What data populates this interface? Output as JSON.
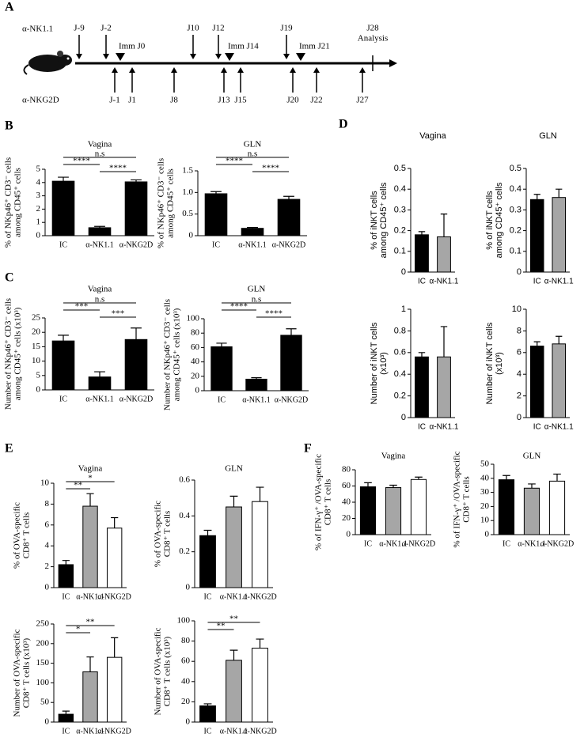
{
  "panel_labels": [
    "A",
    "B",
    "C",
    "D",
    "E",
    "F"
  ],
  "timeline": {
    "treatments": [
      "α-NK1.1",
      "α-NKG2D"
    ],
    "above": [
      "J-9",
      "J-2",
      "J10",
      "J12",
      "J19"
    ],
    "immunizations": [
      "Imm J0",
      "Imm J14",
      "Imm J21"
    ],
    "analysis": [
      "J28",
      "Analysis"
    ],
    "below": [
      "J-1",
      "J1",
      "J8",
      "J13",
      "J15",
      "J20",
      "J22",
      "J27"
    ]
  },
  "chart_data": [
    {
      "type": "bar",
      "title": "Vagina",
      "y_label": [
        "% of NKp46⁺ CD3⁻ cells",
        "among CD45⁺ cells"
      ],
      "categories": [
        "IC",
        "α-NK1.1",
        "α-NKG2D"
      ],
      "colors": [
        "#000000",
        "#000000",
        "#000000"
      ],
      "values": [
        4.1,
        0.6,
        4.05
      ],
      "errors": [
        0.3,
        0.1,
        0.15
      ],
      "ylim": [
        0,
        5
      ],
      "yticks": [
        0,
        1,
        2,
        3,
        4,
        5
      ],
      "significance": [
        {
          "label": "n.s",
          "between": [
            "IC",
            "α-NKG2D"
          ]
        },
        {
          "label": "****",
          "between": [
            "IC",
            "α-NK1.1"
          ]
        },
        {
          "label": "****",
          "between": [
            "α-NK1.1",
            "α-NKG2D"
          ]
        }
      ]
    },
    {
      "type": "bar",
      "title": "GLN",
      "y_label": [
        "% of NKp46⁺ CD3⁻ cells",
        "among CD45⁺ cells"
      ],
      "categories": [
        "IC",
        "α-NK1.1",
        "α-NKG2D"
      ],
      "colors": [
        "#000000",
        "#000000",
        "#000000"
      ],
      "values": [
        0.97,
        0.17,
        0.84
      ],
      "errors": [
        0.05,
        0.02,
        0.07
      ],
      "ylim": [
        0,
        1.5
      ],
      "yticks": [
        0,
        0.5,
        {
          "value": 1,
          "label": "1.0"
        },
        1.5
      ],
      "significance": [
        {
          "label": "n.s",
          "between": [
            "IC",
            "α-NKG2D"
          ]
        },
        {
          "label": "****",
          "between": [
            "IC",
            "α-NK1.1"
          ]
        },
        {
          "label": "****",
          "between": [
            "α-NK1.1",
            "α-NKG2D"
          ]
        }
      ]
    },
    {
      "type": "bar",
      "title": "Vagina",
      "y_label": [
        "Number of NKp46⁺ CD3⁻ cells",
        "among CD45⁺ cells (x10³)"
      ],
      "categories": [
        "IC",
        "α-NK1.1",
        "α-NKG2D"
      ],
      "colors": [
        "#000000",
        "#000000",
        "#000000"
      ],
      "values": [
        17,
        4.5,
        17.5
      ],
      "errors": [
        2,
        1.8,
        4
      ],
      "ylim": [
        0,
        25
      ],
      "yticks": [
        0,
        5,
        10,
        15,
        20,
        25
      ],
      "significance": [
        {
          "label": "n.s",
          "between": [
            "IC",
            "α-NKG2D"
          ]
        },
        {
          "label": "***",
          "between": [
            "IC",
            "α-NK1.1"
          ]
        },
        {
          "label": "***",
          "between": [
            "α-NK1.1",
            "α-NKG2D"
          ]
        }
      ]
    },
    {
      "type": "bar",
      "title": "GLN",
      "y_label": [
        "Number of NKp46⁺ CD3⁻ cells",
        "among CD45⁺ cells (x10³)"
      ],
      "categories": [
        "IC",
        "α-NK1.1",
        "α-NKG2D"
      ],
      "colors": [
        "#000000",
        "#000000",
        "#000000"
      ],
      "values": [
        61,
        16,
        77
      ],
      "errors": [
        5,
        2,
        9
      ],
      "ylim": [
        0,
        100
      ],
      "yticks": [
        0,
        20,
        40,
        60,
        80,
        100
      ],
      "significance": [
        {
          "label": "n.s",
          "between": [
            "IC",
            "α-NKG2D"
          ]
        },
        {
          "label": "****",
          "between": [
            "IC",
            "α-NK1.1"
          ]
        },
        {
          "label": "****",
          "between": [
            "α-NK1.1",
            "α-NKG2D"
          ]
        }
      ]
    },
    {
      "type": "bar",
      "title": "Vagina",
      "y_label": [
        "% of iNKT cells",
        "among CD45⁺ cells"
      ],
      "categories": [
        "IC",
        "α-NK1.1"
      ],
      "colors": [
        "#000000",
        "#a6a6a6"
      ],
      "values": [
        0.18,
        0.17
      ],
      "errors": [
        0.015,
        0.11
      ],
      "ylim": [
        0,
        0.5
      ],
      "yticks": [
        0,
        0.1,
        0.2,
        0.3,
        0.4,
        0.5
      ],
      "significance": []
    },
    {
      "type": "bar",
      "title": "GLN",
      "y_label": [
        "% of iNKT cells",
        "among CD45⁺ cells"
      ],
      "categories": [
        "IC",
        "α-NK1.1"
      ],
      "colors": [
        "#000000",
        "#a6a6a6"
      ],
      "values": [
        0.35,
        0.36
      ],
      "errors": [
        0.025,
        0.04
      ],
      "ylim": [
        0,
        0.5
      ],
      "yticks": [
        0,
        0.1,
        0.2,
        0.3,
        0.4,
        0.5
      ],
      "significance": []
    },
    {
      "type": "bar",
      "y_label": [
        "Number of iNKT cells",
        "(x10³)"
      ],
      "categories": [
        "IC",
        "α-NK1.1"
      ],
      "colors": [
        "#000000",
        "#a6a6a6"
      ],
      "values": [
        0.56,
        0.56
      ],
      "errors": [
        0.04,
        0.28
      ],
      "ylim": [
        0,
        1
      ],
      "yticks": [
        0,
        0.2,
        0.4,
        0.6,
        0.8,
        1
      ],
      "significance": []
    },
    {
      "type": "bar",
      "y_label": [
        "Number of iNKT cells",
        "(x10³)"
      ],
      "categories": [
        "IC",
        "α-NK1.1"
      ],
      "colors": [
        "#000000",
        "#a6a6a6"
      ],
      "values": [
        6.6,
        6.8
      ],
      "errors": [
        0.4,
        0.7
      ],
      "ylim": [
        0,
        10
      ],
      "yticks": [
        0,
        2,
        4,
        6,
        8,
        10
      ],
      "significance": []
    },
    {
      "type": "bar",
      "title": "Vagina",
      "y_label": [
        "% of OVA-specific",
        "CD8⁺ T cells"
      ],
      "categories": [
        "IC",
        "α-NK1.1",
        "α-NKG2D"
      ],
      "colors": [
        "#000000",
        "#a6a6a6",
        "#ffffff"
      ],
      "values": [
        2.2,
        7.8,
        5.7
      ],
      "errors": [
        0.4,
        1.2,
        1.0
      ],
      "ylim": [
        0,
        10
      ],
      "yticks": [
        0,
        2,
        4,
        6,
        8,
        10
      ],
      "significance": [
        {
          "label": "*",
          "between": [
            "IC",
            "α-NKG2D"
          ]
        },
        {
          "label": "**",
          "between": [
            "IC",
            "α-NK1.1"
          ]
        }
      ]
    },
    {
      "type": "bar",
      "title": "GLN",
      "y_label": [
        "% of OVA-specific",
        "CD8⁺ T cells"
      ],
      "categories": [
        "IC",
        "α-NK1.1",
        "α-NKG2D"
      ],
      "colors": [
        "#000000",
        "#a6a6a6",
        "#ffffff"
      ],
      "values": [
        0.29,
        0.45,
        0.48
      ],
      "errors": [
        0.03,
        0.06,
        0.08
      ],
      "ylim": [
        0,
        0.6
      ],
      "yticks": [
        0,
        0.2,
        0.4,
        0.6
      ],
      "significance": []
    },
    {
      "type": "bar",
      "y_label": [
        "Number of OVA-specific",
        "CD8⁺ T cells (x10³)"
      ],
      "categories": [
        "IC",
        "α-NK1.1",
        "α-NKG2D"
      ],
      "colors": [
        "#000000",
        "#a6a6a6",
        "#ffffff"
      ],
      "values": [
        20,
        128,
        165
      ],
      "errors": [
        8,
        38,
        50
      ],
      "ylim": [
        0,
        250
      ],
      "yticks": [
        0,
        50,
        100,
        150,
        200,
        250
      ],
      "significance": [
        {
          "label": "**",
          "between": [
            "IC",
            "α-NKG2D"
          ]
        },
        {
          "label": "*",
          "between": [
            "IC",
            "α-NK1.1"
          ]
        }
      ]
    },
    {
      "type": "bar",
      "y_label": [
        "Number of OVA-specific",
        "CD8⁺ T cells (x10³)"
      ],
      "categories": [
        "IC",
        "α-NK1.1",
        "α-NKG2D"
      ],
      "colors": [
        "#000000",
        "#a6a6a6",
        "#ffffff"
      ],
      "values": [
        16,
        61,
        73
      ],
      "errors": [
        2,
        10,
        9
      ],
      "ylim": [
        0,
        100
      ],
      "yticks": [
        0,
        20,
        40,
        60,
        80,
        100
      ],
      "significance": [
        {
          "label": "**",
          "between": [
            "IC",
            "α-NKG2D"
          ]
        },
        {
          "label": "**",
          "between": [
            "IC",
            "α-NK1.1"
          ]
        }
      ]
    },
    {
      "type": "bar",
      "title": "Vagina",
      "y_label": [
        "% of IFN-γ⁺ /OVA-specific",
        "CD8⁺ T cells"
      ],
      "categories": [
        "IC",
        "α-NK1.1",
        "α-NKG2D"
      ],
      "colors": [
        "#000000",
        "#a6a6a6",
        "#ffffff"
      ],
      "values": [
        59,
        58,
        68
      ],
      "errors": [
        5,
        3,
        3
      ],
      "ylim": [
        0,
        80
      ],
      "yticks": [
        0,
        20,
        40,
        60,
        80
      ],
      "significance": []
    },
    {
      "type": "bar",
      "title": "GLN",
      "y_label": [
        "% of IFN-γ⁺ /OVA-specific",
        "CD8⁺ T cells"
      ],
      "categories": [
        "IC",
        "α-NK1.1",
        "α-NKG2D"
      ],
      "colors": [
        "#000000",
        "#a6a6a6",
        "#ffffff"
      ],
      "values": [
        39,
        33,
        38
      ],
      "errors": [
        3,
        3,
        5
      ],
      "ylim": [
        0,
        50
      ],
      "yticks": [
        0,
        10,
        20,
        30,
        40,
        50
      ],
      "significance": []
    }
  ]
}
